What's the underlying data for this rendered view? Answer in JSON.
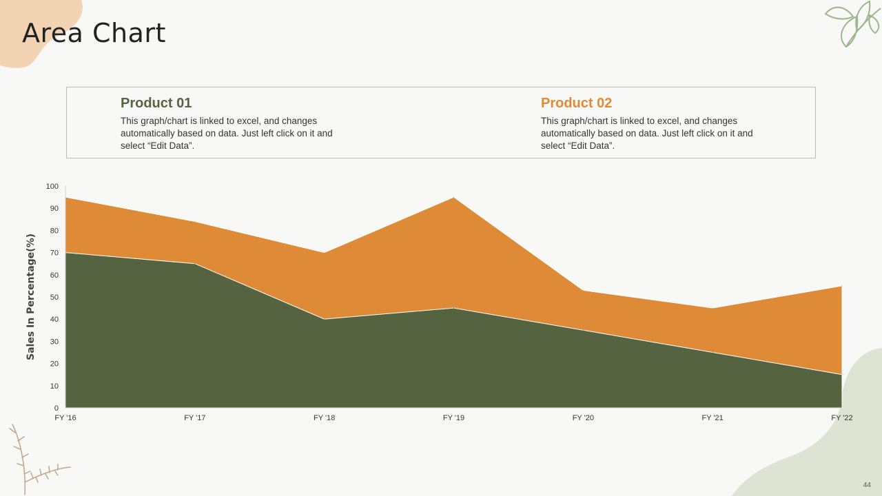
{
  "title": "Area Chart",
  "page_number": "44",
  "colors": {
    "product_01": "#556340",
    "product_02": "#df8a37",
    "blob_peach": "#f2d3b3",
    "blob_sage": "#dde4d3",
    "leaf": "#9cb58a",
    "sprig": "#c4a48c"
  },
  "legend": [
    {
      "name": "Product 01",
      "description": "This graph/chart is linked to excel, and changes automatically based on data. Just left click on it and select “Edit Data”.",
      "color": "#556340"
    },
    {
      "name": "Product 02",
      "description": "This graph/chart is linked to excel, and changes automatically based on data. Just left click on it and select “Edit Data”.",
      "color": "#df8a37"
    }
  ],
  "chart_data": {
    "type": "area",
    "title": "",
    "xlabel": "",
    "ylabel": "Sales In Percentage(%)",
    "categories": [
      "FY '16",
      "FY '17",
      "FY '18",
      "FY '19",
      "FY '20",
      "FY '21",
      "FY '22"
    ],
    "yticks": [
      0,
      10,
      20,
      30,
      40,
      50,
      60,
      70,
      80,
      90,
      100
    ],
    "ylim": [
      0,
      100
    ],
    "grid": false,
    "series": [
      {
        "name": "Product 02",
        "values": [
          95,
          84,
          70,
          95,
          53,
          45,
          55
        ],
        "color": "#df8a37"
      },
      {
        "name": "Product 01",
        "values": [
          70,
          65,
          40,
          45,
          35,
          25,
          15
        ],
        "color": "#556340"
      }
    ]
  }
}
